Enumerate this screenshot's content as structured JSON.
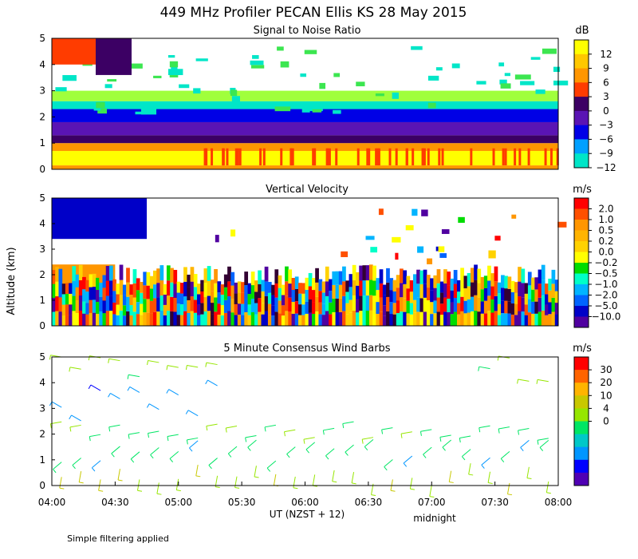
{
  "figure": {
    "title": "449 MHz Profiler PECAN Ellis KS 28 May 2015",
    "y_axis_label": "Altitude (km)",
    "x_axis_label": "UT  (NZST + 12)",
    "x_sublabel": "midnight",
    "footnote": "Simple filtering applied"
  },
  "chart_data": [
    {
      "type": "heatmap",
      "title": "Signal to Noise Ratio",
      "units": "dB",
      "ylim": [
        0,
        5
      ],
      "yticks": [
        "0",
        "1",
        "2",
        "3",
        "4",
        "5"
      ],
      "xticks": [
        "04:00",
        "04:30",
        "05:00",
        "05:30",
        "06:00",
        "06:30",
        "07:00",
        "07:30",
        "08:00"
      ],
      "colorbar": {
        "labels": [
          "12",
          "9",
          "6",
          "3",
          "0",
          "−3",
          "−6",
          "−9",
          "−12"
        ],
        "colors": [
          "#ffff00",
          "#ffc800",
          "#ff9600",
          "#ff3c00",
          "#3c0064",
          "#5a14b4",
          "#0000e6",
          "#00a0ff",
          "#00e6c8",
          "#3ce650",
          "#a0ff3c"
        ]
      },
      "layers": [
        {
          "from_km": 0.0,
          "to_km": 0.15,
          "value_db": 6
        },
        {
          "from_km": 0.15,
          "to_km": 0.7,
          "value_db": 12
        },
        {
          "from_km": 0.7,
          "to_km": 1.0,
          "value_db": 6
        },
        {
          "from_km": 1.0,
          "to_km": 1.3,
          "value_db": 0
        },
        {
          "from_km": 1.3,
          "to_km": 1.8,
          "value_db": -3
        },
        {
          "from_km": 1.8,
          "to_km": 2.3,
          "value_db": -6
        },
        {
          "from_km": 2.3,
          "to_km": 2.6,
          "value_db": -9
        },
        {
          "from_km": 2.6,
          "to_km": 3.0,
          "value_db": -12
        }
      ]
    },
    {
      "type": "heatmap",
      "title": "Vertical Velocity",
      "units": "m/s",
      "ylim": [
        0,
        5
      ],
      "yticks": [
        "0",
        "1",
        "2",
        "3",
        "4",
        "5"
      ],
      "xticks": [
        "04:00",
        "04:30",
        "05:00",
        "05:30",
        "06:00",
        "06:30",
        "07:00",
        "07:30",
        "08:00"
      ],
      "colorbar": {
        "labels": [
          "2.0",
          "1.0",
          "0.5",
          "0.2",
          "0.0",
          "−0.2",
          "−0.5",
          "−1.0",
          "−2.0",
          "−5.0",
          "−10.0"
        ],
        "colors": [
          "#ff0000",
          "#ff5000",
          "#ff9600",
          "#ffb400",
          "#ffd200",
          "#ffff00",
          "#00dc00",
          "#00ffc8",
          "#00b4ff",
          "#0064ff",
          "#0000c8",
          "#5000a0",
          "#320032"
        ]
      },
      "regions": [
        {
          "t_from": "04:00",
          "t_to": "04:45",
          "from_km": 3.4,
          "to_km": 5.0,
          "velocity": "−1.0 to −2.0"
        },
        {
          "t_from": "04:00",
          "t_to": "04:30",
          "from_km": 0.0,
          "to_km": 2.4,
          "velocity": "0.2 to 2.0"
        },
        {
          "t_from": "04:30",
          "t_to": "08:00",
          "from_km": 0.0,
          "to_km": 2.3,
          "velocity": "mixed"
        }
      ]
    },
    {
      "type": "wind_barbs",
      "title": "5 Minute Consensus Wind Barbs",
      "units": "m/s",
      "ylim": [
        0,
        5
      ],
      "yticks": [
        "0",
        "1",
        "2",
        "3",
        "4",
        "5"
      ],
      "xticks": [
        "04:00",
        "04:30",
        "05:00",
        "05:30",
        "06:00",
        "06:30",
        "07:00",
        "07:30",
        "08:00"
      ],
      "colorbar": {
        "labels": [
          "30",
          "20",
          "10",
          "4",
          "0"
        ],
        "colors": [
          "#ff0000",
          "#ff6400",
          "#ffb400",
          "#c8c800",
          "#96e600",
          "#00e664",
          "#00c8c8",
          "#0096ff",
          "#0000ff",
          "#5000b4"
        ]
      },
      "layers": [
        {
          "from_km": 0.0,
          "to_km": 0.9,
          "speed_ms": 14,
          "direction_deg": 190
        },
        {
          "from_km": 0.9,
          "to_km": 1.8,
          "speed_ms": 8,
          "direction_deg": 230
        },
        {
          "from_km": 1.8,
          "to_km": 2.5,
          "speed_ms": 9,
          "direction_deg": 260
        },
        {
          "from_km": 2.5,
          "to_km": 4.0,
          "speed_ms": 4,
          "direction_deg": 300
        },
        {
          "from_km": 4.0,
          "to_km": 5.0,
          "speed_ms": 11,
          "direction_deg": 280
        }
      ]
    }
  ]
}
